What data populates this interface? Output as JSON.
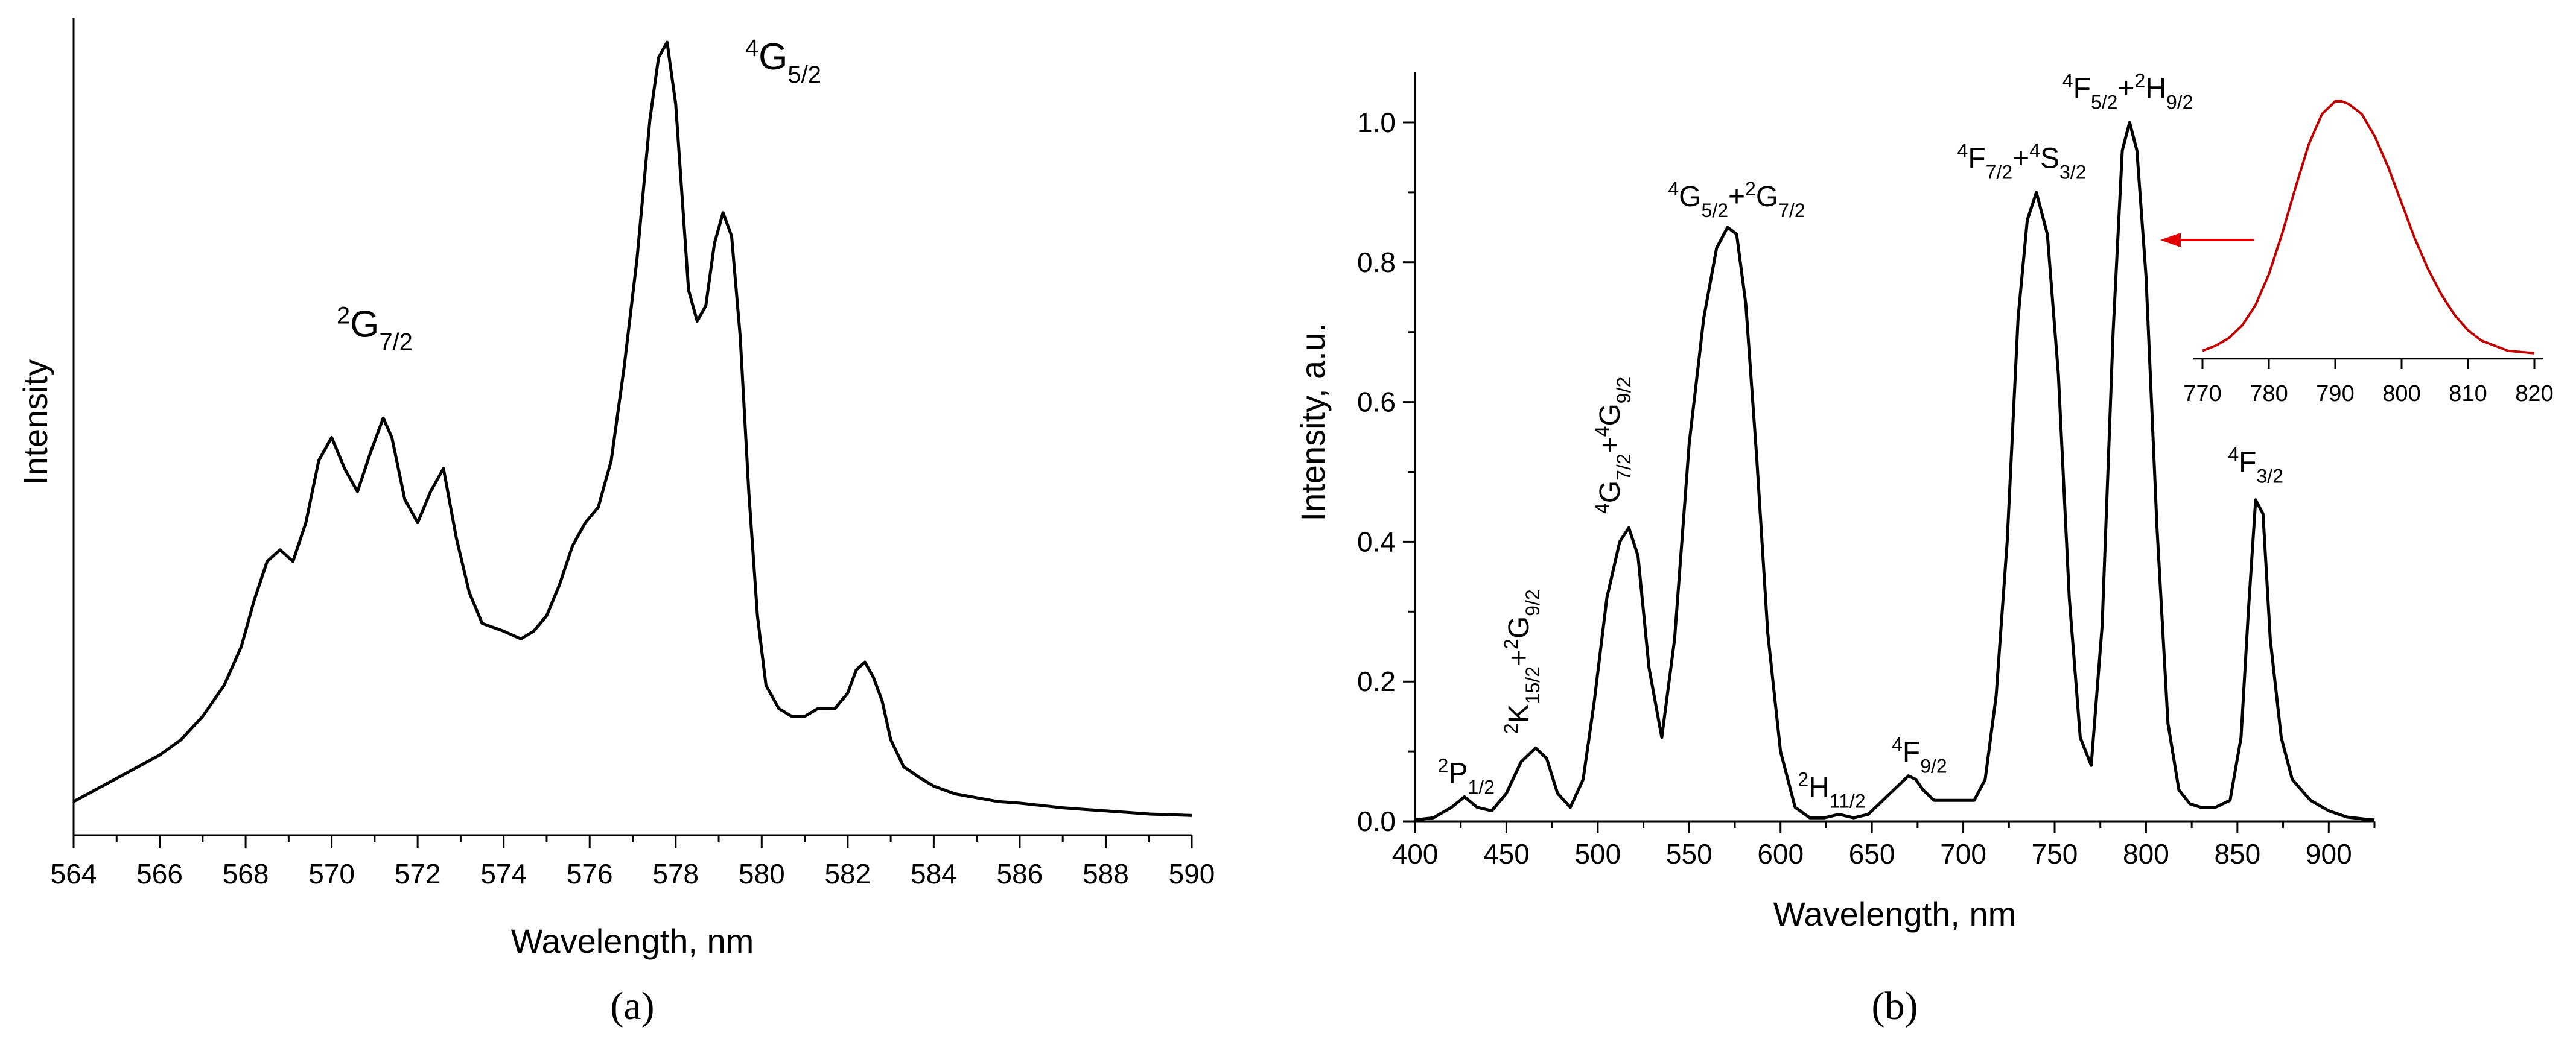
{
  "chart_data": [
    {
      "type": "line",
      "panel_label": "(a)",
      "title": "",
      "xlabel": "Wavelength, nm",
      "ylabel": "Intensity",
      "xlim": [
        564,
        590
      ],
      "ylim": [
        0,
        1.0
      ],
      "xticks": [
        564,
        566,
        568,
        570,
        572,
        574,
        576,
        578,
        580,
        582,
        584,
        586,
        588,
        590
      ],
      "yticks_shown": false,
      "annotations": [
        {
          "label": "²G₇/₂",
          "sup": "2",
          "base": "G",
          "sub": "7/2",
          "x": 571.0,
          "y": 0.62
        },
        {
          "label": "⁴G₅/₂",
          "sup": "4",
          "base": "G",
          "sub": "5/2",
          "x": 580.5,
          "y": 0.965
        }
      ],
      "series": [
        {
          "name": "emission",
          "x": [
            564.0,
            564.5,
            565.0,
            565.5,
            566.0,
            566.5,
            567.0,
            567.5,
            567.9,
            568.2,
            568.5,
            568.8,
            569.1,
            569.4,
            569.7,
            570.0,
            570.3,
            570.6,
            570.9,
            571.2,
            571.4,
            571.7,
            572.0,
            572.3,
            572.6,
            572.9,
            573.2,
            573.5,
            574.0,
            574.4,
            574.7,
            575.0,
            575.3,
            575.6,
            575.9,
            576.2,
            576.5,
            576.8,
            577.1,
            577.4,
            577.6,
            577.8,
            578.0,
            578.3,
            578.5,
            578.7,
            578.9,
            579.1,
            579.3,
            579.5,
            579.7,
            579.9,
            580.1,
            580.4,
            580.7,
            581.0,
            581.3,
            581.7,
            582.0,
            582.2,
            582.4,
            582.6,
            582.8,
            583.0,
            583.3,
            583.7,
            584.0,
            584.5,
            585.0,
            585.5,
            586.0,
            586.5,
            587.0,
            587.5,
            588.0,
            588.5,
            589.0,
            589.5,
            590.0
          ],
          "values": [
            0.02,
            0.035,
            0.05,
            0.065,
            0.08,
            0.1,
            0.13,
            0.17,
            0.22,
            0.28,
            0.33,
            0.345,
            0.33,
            0.38,
            0.46,
            0.49,
            0.45,
            0.42,
            0.47,
            0.515,
            0.49,
            0.41,
            0.38,
            0.42,
            0.45,
            0.36,
            0.29,
            0.25,
            0.24,
            0.23,
            0.24,
            0.26,
            0.3,
            0.35,
            0.38,
            0.4,
            0.46,
            0.58,
            0.72,
            0.9,
            0.98,
            1.0,
            0.92,
            0.68,
            0.64,
            0.66,
            0.74,
            0.78,
            0.75,
            0.62,
            0.42,
            0.26,
            0.17,
            0.14,
            0.13,
            0.13,
            0.14,
            0.14,
            0.16,
            0.19,
            0.2,
            0.18,
            0.15,
            0.1,
            0.065,
            0.05,
            0.04,
            0.03,
            0.025,
            0.02,
            0.018,
            0.015,
            0.012,
            0.01,
            0.008,
            0.006,
            0.004,
            0.003,
            0.002
          ]
        }
      ]
    },
    {
      "type": "line",
      "panel_label": "(b)",
      "title": "",
      "xlabel": "Wavelength, nm",
      "ylabel": "Intensity, a.u.",
      "xlim": [
        400,
        925
      ],
      "ylim": [
        0,
        1.05
      ],
      "xticks": [
        400,
        450,
        500,
        550,
        600,
        650,
        700,
        750,
        800,
        850,
        900
      ],
      "yticks": [
        0.0,
        0.2,
        0.4,
        0.6,
        0.8,
        1.0
      ],
      "ytick_labels": [
        "0.0",
        "0.2",
        "0.4",
        "0.6",
        "0.8",
        "1.0"
      ],
      "annotations": [
        {
          "terms": [
            {
              "sup": "2",
              "base": "P",
              "sub": "1/2"
            }
          ],
          "x": 428,
          "y": 0.055,
          "rotated": false
        },
        {
          "terms": [
            {
              "sup": "2",
              "base": "K",
              "sub": "15/2"
            },
            {
              "sup": "2",
              "base": "G",
              "sub": "9/2"
            }
          ],
          "x": 462,
          "y": 0.125,
          "rotated": true
        },
        {
          "terms": [
            {
              "sup": "4",
              "base": "G",
              "sub": "7/2"
            },
            {
              "sup": "4",
              "base": "G",
              "sub": "9/2"
            }
          ],
          "x": 512,
          "y": 0.44,
          "rotated": true
        },
        {
          "terms": [
            {
              "sup": "4",
              "base": "G",
              "sub": "5/2"
            },
            {
              "sup": "2",
              "base": "G",
              "sub": "7/2"
            }
          ],
          "x": 576,
          "y": 0.88,
          "rotated": false
        },
        {
          "terms": [
            {
              "sup": "2",
              "base": "H",
              "sub": "11/2"
            }
          ],
          "x": 628,
          "y": 0.035,
          "rotated": false
        },
        {
          "terms": [
            {
              "sup": "4",
              "base": "F",
              "sub": "9/2"
            }
          ],
          "x": 676,
          "y": 0.085,
          "rotated": false
        },
        {
          "terms": [
            {
              "sup": "4",
              "base": "F",
              "sub": "7/2"
            },
            {
              "sup": "4",
              "base": "S",
              "sub": "3/2"
            }
          ],
          "x": 732,
          "y": 0.935,
          "rotated": false
        },
        {
          "terms": [
            {
              "sup": "4",
              "base": "F",
              "sub": "5/2"
            },
            {
              "sup": "2",
              "base": "H",
              "sub": "9/2"
            }
          ],
          "x": 790,
          "y": 1.035,
          "rotated": false
        },
        {
          "terms": [
            {
              "sup": "4",
              "base": "F",
              "sub": "3/2"
            }
          ],
          "x": 860,
          "y": 0.5,
          "rotated": false
        }
      ],
      "series": [
        {
          "name": "emission",
          "x": [
            400,
            410,
            420,
            427,
            434,
            442,
            450,
            458,
            466,
            472,
            478,
            485,
            492,
            498,
            505,
            512,
            517,
            522,
            528,
            535,
            542,
            550,
            558,
            565,
            571,
            576,
            581,
            587,
            593,
            600,
            608,
            616,
            624,
            632,
            640,
            648,
            656,
            664,
            670,
            674,
            678,
            684,
            692,
            700,
            706,
            712,
            718,
            724,
            730,
            735,
            740,
            746,
            752,
            758,
            764,
            770,
            776,
            782,
            787,
            791,
            795,
            800,
            806,
            812,
            818,
            824,
            830,
            838,
            846,
            852,
            856,
            860,
            864,
            868,
            874,
            880,
            890,
            900,
            910,
            920,
            925
          ],
          "values": [
            0.002,
            0.005,
            0.02,
            0.035,
            0.02,
            0.015,
            0.04,
            0.085,
            0.105,
            0.09,
            0.04,
            0.02,
            0.06,
            0.17,
            0.32,
            0.4,
            0.42,
            0.38,
            0.22,
            0.12,
            0.26,
            0.54,
            0.72,
            0.82,
            0.85,
            0.84,
            0.74,
            0.52,
            0.27,
            0.1,
            0.02,
            0.005,
            0.005,
            0.01,
            0.005,
            0.01,
            0.03,
            0.05,
            0.065,
            0.06,
            0.045,
            0.03,
            0.03,
            0.03,
            0.03,
            0.06,
            0.18,
            0.4,
            0.72,
            0.86,
            0.9,
            0.84,
            0.64,
            0.32,
            0.12,
            0.08,
            0.28,
            0.7,
            0.96,
            1.0,
            0.96,
            0.78,
            0.42,
            0.14,
            0.045,
            0.025,
            0.02,
            0.02,
            0.03,
            0.12,
            0.3,
            0.46,
            0.44,
            0.26,
            0.12,
            0.06,
            0.03,
            0.015,
            0.006,
            0.003,
            0.002
          ]
        }
      ],
      "inset": {
        "type": "line",
        "xlim": [
          770,
          820
        ],
        "xticks": [
          770,
          780,
          790,
          800,
          810,
          820
        ],
        "series_color": "#c00000",
        "arrow_color": "#e00000",
        "series": [
          {
            "name": "inset-peak",
            "x": [
              770,
              772,
              774,
              776,
              778,
              780,
              782,
              784,
              786,
              788,
              790,
              791,
              792,
              794,
              796,
              798,
              800,
              802,
              804,
              806,
              808,
              810,
              812,
              814,
              816,
              818,
              820
            ],
            "values": [
              0.02,
              0.04,
              0.07,
              0.12,
              0.2,
              0.32,
              0.48,
              0.66,
              0.83,
              0.95,
              1.0,
              1.0,
              0.99,
              0.95,
              0.86,
              0.74,
              0.6,
              0.46,
              0.34,
              0.24,
              0.16,
              0.1,
              0.06,
              0.04,
              0.02,
              0.015,
              0.01
            ]
          }
        ]
      }
    }
  ]
}
